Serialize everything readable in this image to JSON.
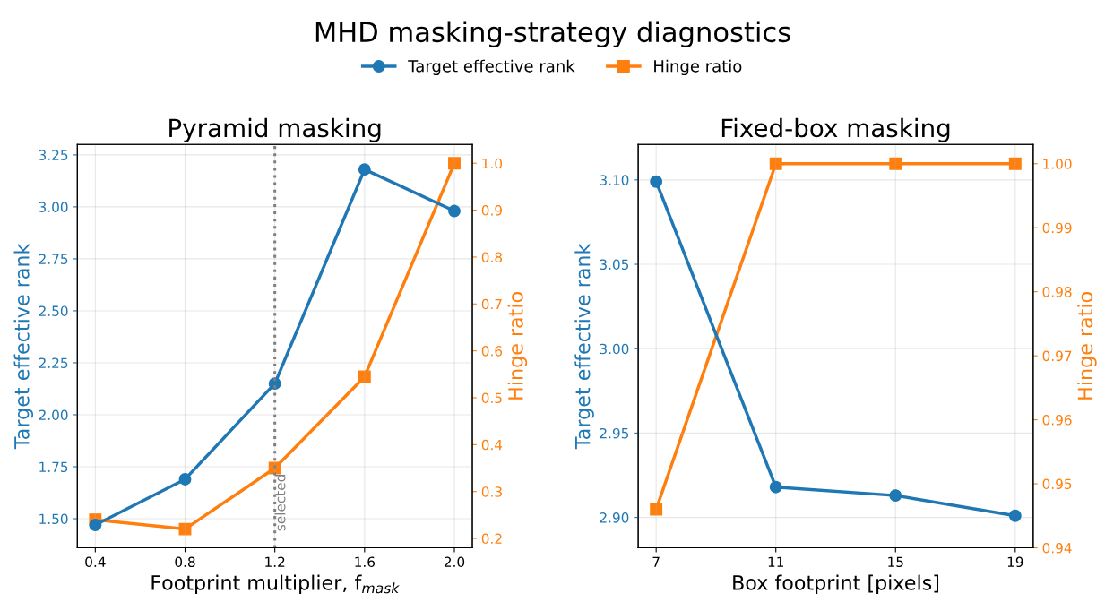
{
  "chart_data": [
    {
      "type": "line",
      "title": "Pyramid masking",
      "xlabel": "Footprint multiplier, f$_{mask}$",
      "ylabel": "Target effective rank",
      "y2label": "Hinge ratio",
      "annotations": [
        "MHD masking-strategy diagnostics"
      ],
      "x": [
        0.4,
        0.8,
        1.2,
        1.6,
        2.0
      ],
      "series": [
        {
          "name": "Target effective rank",
          "color": "#1f77b4",
          "marker": "circle",
          "values": [
            1.47,
            1.69,
            2.15,
            3.18,
            2.98
          ]
        },
        {
          "name": "Hinge ratio",
          "color": "#ff7f0e",
          "marker": "square",
          "axis": "y2",
          "values": [
            0.24,
            0.22,
            0.35,
            0.545,
            1.0
          ]
        }
      ],
      "xlim": [
        0.32,
        2.08
      ],
      "xticks": [
        {
          "value": 0.4,
          "label": "0.4"
        },
        {
          "value": 0.8,
          "label": "0.8"
        },
        {
          "value": 1.2,
          "label": "1.2"
        },
        {
          "value": 1.6,
          "label": "1.6"
        },
        {
          "value": 2.0,
          "label": "2.0"
        }
      ],
      "ylim": [
        1.36,
        3.3
      ],
      "yticks": [
        {
          "value": 1.5,
          "label": "1.50"
        },
        {
          "value": 1.75,
          "label": "1.75"
        },
        {
          "value": 2.0,
          "label": "2.00"
        },
        {
          "value": 2.25,
          "label": "2.25"
        },
        {
          "value": 2.5,
          "label": "2.50"
        },
        {
          "value": 2.75,
          "label": "2.75"
        },
        {
          "value": 3.0,
          "label": "3.00"
        },
        {
          "value": 3.25,
          "label": "3.25"
        }
      ],
      "y2lim": [
        0.18,
        1.04
      ],
      "y2ticks": [
        0.2,
        0.3,
        0.4,
        0.5,
        0.6,
        0.7,
        0.8,
        0.9,
        {
          "value": 1.0,
          "label": "1.0"
        }
      ],
      "ref_lines": [
        {
          "axis": "x",
          "value": 1.2,
          "label": "selected",
          "color": "#808080",
          "line_style": "dotted"
        }
      ],
      "grid": true,
      "legend": "top"
    },
    {
      "type": "line",
      "title": "Fixed-box masking",
      "xlabel": "Box footprint [pixels]",
      "ylabel": "Target effective rank",
      "y2label": "Hinge ratio",
      "x": [
        7,
        11,
        15,
        19
      ],
      "series": [
        {
          "color": "#1f77b4",
          "marker": "circle",
          "values": [
            3.099,
            2.918,
            2.913,
            2.901
          ]
        },
        {
          "color": "#ff7f0e",
          "marker": "square",
          "axis": "y2",
          "values": [
            0.946,
            1.0,
            1.0,
            1.0
          ]
        }
      ],
      "xlim": [
        6.4,
        19.6
      ],
      "xticks": [
        7,
        11,
        15,
        19
      ],
      "ylim": [
        2.882,
        3.121
      ],
      "yticks": [
        {
          "value": 2.9,
          "label": "2.90"
        },
        {
          "value": 2.95,
          "label": "2.95"
        },
        {
          "value": 3.0,
          "label": "3.00"
        },
        {
          "value": 3.05,
          "label": "3.05"
        },
        {
          "value": 3.1,
          "label": "3.10"
        }
      ],
      "y2lim": [
        0.94,
        1.003
      ],
      "y2ticks": [
        {
          "value": 0.94,
          "label": "0.94"
        },
        {
          "value": 0.95,
          "label": "0.95"
        },
        {
          "value": 0.96,
          "label": "0.96"
        },
        {
          "value": 0.97,
          "label": "0.97"
        },
        {
          "value": 0.98,
          "label": "0.98"
        },
        {
          "value": 0.99,
          "label": "0.99"
        },
        {
          "value": 1.0,
          "label": "1.00"
        }
      ],
      "grid": true
    }
  ]
}
